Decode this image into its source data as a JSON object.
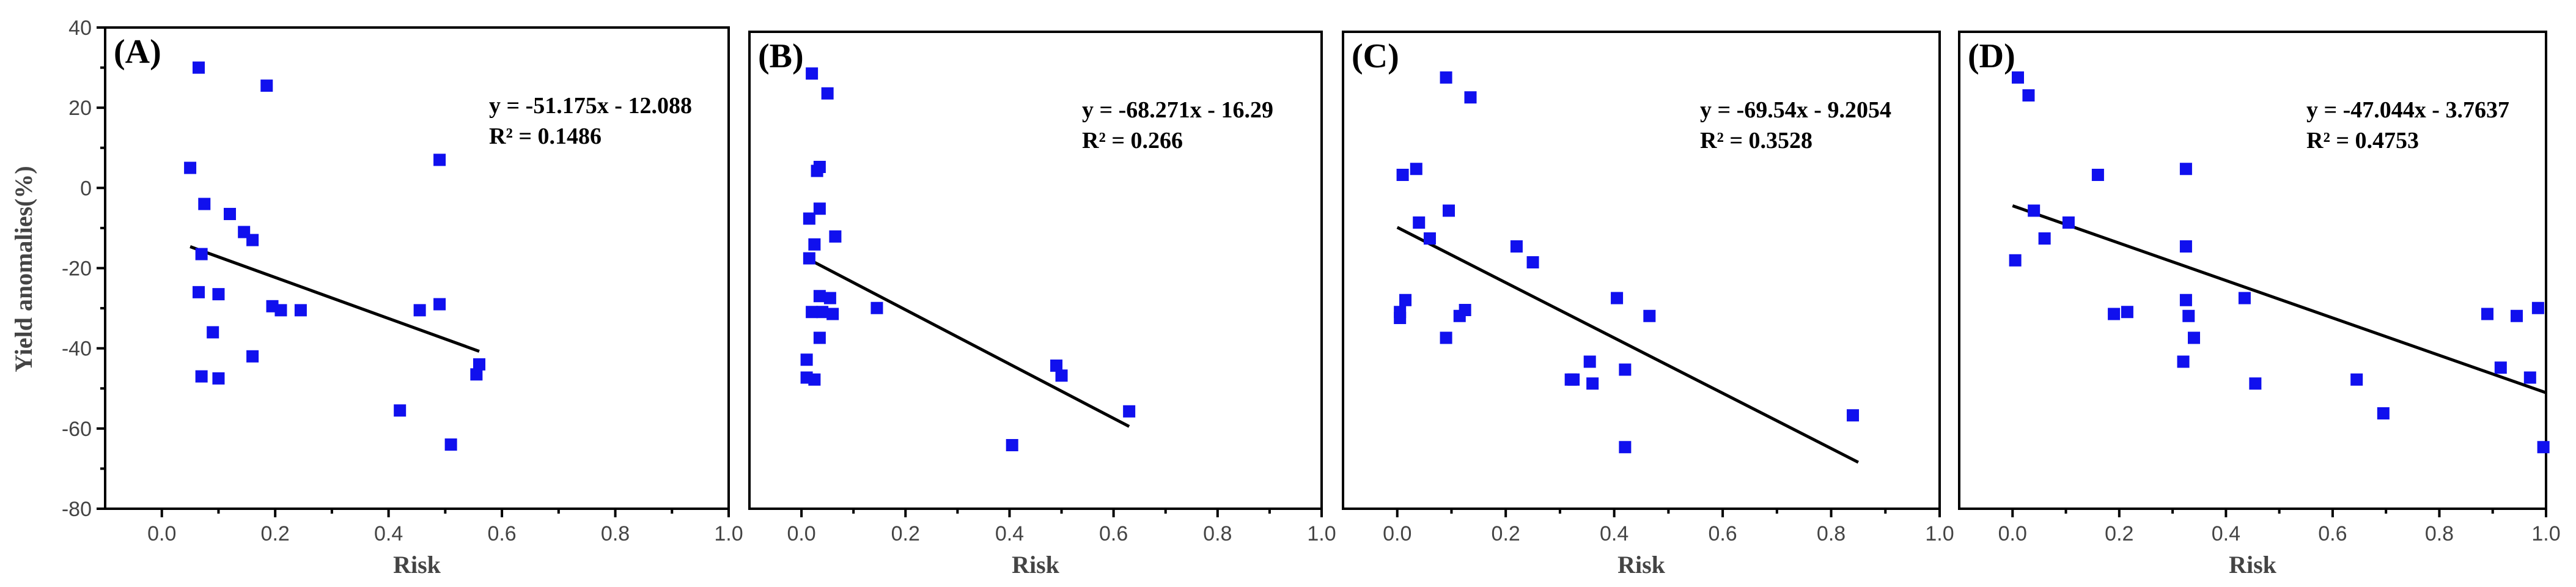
{
  "chart_data": [
    {
      "type": "scatter",
      "panel": "(A)",
      "xlabel": "Risk",
      "ylabel": "Yield anomalies(%)",
      "xlim": [
        -0.1,
        1.0
      ],
      "ylim": [
        -80,
        40
      ],
      "xticks": [
        "0.0",
        "0.2",
        "0.4",
        "0.6",
        "0.8",
        "1.0"
      ],
      "yticks": [
        "40",
        "20",
        "0",
        "-20",
        "-40",
        "-60",
        "-80"
      ],
      "show_yticks": true,
      "equation": "y = -51.175x - 12.088",
      "r2": "R² = 0.1486",
      "fit": {
        "slope": -51.175,
        "intercept": -12.088,
        "x_range": [
          0.05,
          0.56
        ]
      },
      "points": [
        {
          "x": 0.05,
          "y": 5
        },
        {
          "x": 0.065,
          "y": 30
        },
        {
          "x": 0.07,
          "y": -16.5
        },
        {
          "x": 0.065,
          "y": -26
        },
        {
          "x": 0.075,
          "y": -4
        },
        {
          "x": 0.07,
          "y": -47
        },
        {
          "x": 0.09,
          "y": -36
        },
        {
          "x": 0.1,
          "y": -26.5
        },
        {
          "x": 0.1,
          "y": -47.5
        },
        {
          "x": 0.12,
          "y": -6.5
        },
        {
          "x": 0.145,
          "y": -11
        },
        {
          "x": 0.16,
          "y": -13
        },
        {
          "x": 0.16,
          "y": -42
        },
        {
          "x": 0.185,
          "y": 25.5
        },
        {
          "x": 0.195,
          "y": -29.5
        },
        {
          "x": 0.21,
          "y": -30.5
        },
        {
          "x": 0.245,
          "y": -30.5
        },
        {
          "x": 0.42,
          "y": -55.5
        },
        {
          "x": 0.455,
          "y": -30.5
        },
        {
          "x": 0.49,
          "y": 7
        },
        {
          "x": 0.49,
          "y": -29
        },
        {
          "x": 0.51,
          "y": -64
        },
        {
          "x": 0.555,
          "y": -46.5
        },
        {
          "x": 0.56,
          "y": -44
        }
      ]
    },
    {
      "type": "scatter",
      "panel": "(B)",
      "xlabel": "Risk",
      "ylabel": "",
      "xlim": [
        -0.1,
        1.0
      ],
      "ylim": [
        -80,
        40
      ],
      "xticks": [
        "0.0",
        "0.2",
        "0.4",
        "0.6",
        "0.8",
        "1.0"
      ],
      "yticks": [],
      "show_yticks": false,
      "equation": "y = -68.271x - 16.29",
      "r2": "R² = 0.266",
      "fit": {
        "slope": -68.271,
        "intercept": -16.29,
        "x_range": [
          0.01,
          0.63
        ]
      },
      "points": [
        {
          "x": 0.02,
          "y": 29.5
        },
        {
          "x": 0.05,
          "y": 24.5
        },
        {
          "x": 0.03,
          "y": 5
        },
        {
          "x": 0.035,
          "y": 6
        },
        {
          "x": 0.035,
          "y": -4.5
        },
        {
          "x": 0.015,
          "y": -7
        },
        {
          "x": 0.065,
          "y": -11.5
        },
        {
          "x": 0.025,
          "y": -13.5
        },
        {
          "x": 0.015,
          "y": -17
        },
        {
          "x": 0.035,
          "y": -26.5
        },
        {
          "x": 0.055,
          "y": -27
        },
        {
          "x": 0.02,
          "y": -30.5
        },
        {
          "x": 0.04,
          "y": -30.5
        },
        {
          "x": 0.06,
          "y": -31
        },
        {
          "x": 0.035,
          "y": -37
        },
        {
          "x": 0.01,
          "y": -42.5
        },
        {
          "x": 0.01,
          "y": -47
        },
        {
          "x": 0.025,
          "y": -47.5
        },
        {
          "x": 0.145,
          "y": -29.5
        },
        {
          "x": 0.405,
          "y": -64
        },
        {
          "x": 0.49,
          "y": -44
        },
        {
          "x": 0.5,
          "y": -46.5
        },
        {
          "x": 0.63,
          "y": -55.5
        }
      ]
    },
    {
      "type": "scatter",
      "panel": "(C)",
      "xlabel": "Risk",
      "ylabel": "",
      "xlim": [
        -0.1,
        1.0
      ],
      "ylim": [
        -80,
        40
      ],
      "xticks": [
        "0.0",
        "0.2",
        "0.4",
        "0.6",
        "0.8",
        "1.0"
      ],
      "yticks": [],
      "show_yticks": false,
      "equation": "y = -69.54x - 9.2054",
      "r2": "R² = 0.3528",
      "fit": {
        "slope": -69.54,
        "intercept": -9.2054,
        "x_range": [
          0.0,
          0.85
        ]
      },
      "points": [
        {
          "x": 0.09,
          "y": 28.5
        },
        {
          "x": 0.135,
          "y": 23.5
        },
        {
          "x": 0.035,
          "y": 5.5
        },
        {
          "x": 0.01,
          "y": 4
        },
        {
          "x": 0.095,
          "y": -5
        },
        {
          "x": 0.04,
          "y": -8
        },
        {
          "x": 0.06,
          "y": -12
        },
        {
          "x": 0.22,
          "y": -14
        },
        {
          "x": 0.25,
          "y": -18
        },
        {
          "x": 0.015,
          "y": -27.5
        },
        {
          "x": 0.005,
          "y": -30.5
        },
        {
          "x": 0.005,
          "y": -32
        },
        {
          "x": 0.125,
          "y": -30
        },
        {
          "x": 0.115,
          "y": -31.5
        },
        {
          "x": 0.09,
          "y": -37
        },
        {
          "x": 0.405,
          "y": -27
        },
        {
          "x": 0.465,
          "y": -31.5
        },
        {
          "x": 0.355,
          "y": -43
        },
        {
          "x": 0.42,
          "y": -45
        },
        {
          "x": 0.32,
          "y": -47.5
        },
        {
          "x": 0.325,
          "y": -47.5
        },
        {
          "x": 0.36,
          "y": -48.5
        },
        {
          "x": 0.42,
          "y": -64.5
        },
        {
          "x": 0.84,
          "y": -56.5
        }
      ]
    },
    {
      "type": "scatter",
      "panel": "(D)",
      "xlabel": "Risk",
      "ylabel": "",
      "xlim": [
        -0.1,
        1.0
      ],
      "ylim": [
        -80,
        40
      ],
      "xticks": [
        "0.0",
        "0.2",
        "0.4",
        "0.6",
        "0.8",
        "1.0"
      ],
      "yticks": [],
      "show_yticks": false,
      "equation": "y = -47.044x - 3.7637",
      "r2": "R² = 0.4753",
      "fit": {
        "slope": -47.044,
        "intercept": -3.7637,
        "x_range": [
          0.0,
          1.0
        ]
      },
      "points": [
        {
          "x": 0.01,
          "y": 28.5
        },
        {
          "x": 0.03,
          "y": 24
        },
        {
          "x": 0.005,
          "y": -17.5
        },
        {
          "x": 0.04,
          "y": -5
        },
        {
          "x": 0.06,
          "y": -12
        },
        {
          "x": 0.105,
          "y": -8
        },
        {
          "x": 0.16,
          "y": 4
        },
        {
          "x": 0.19,
          "y": -31
        },
        {
          "x": 0.215,
          "y": -30.5
        },
        {
          "x": 0.325,
          "y": 5.5
        },
        {
          "x": 0.325,
          "y": -14
        },
        {
          "x": 0.325,
          "y": -27.5
        },
        {
          "x": 0.33,
          "y": -31.5
        },
        {
          "x": 0.34,
          "y": -37
        },
        {
          "x": 0.32,
          "y": -43
        },
        {
          "x": 0.435,
          "y": -27
        },
        {
          "x": 0.455,
          "y": -48.5
        },
        {
          "x": 0.645,
          "y": -47.5
        },
        {
          "x": 0.695,
          "y": -56
        },
        {
          "x": 0.89,
          "y": -31
        },
        {
          "x": 0.915,
          "y": -44.5
        },
        {
          "x": 0.945,
          "y": -31.5
        },
        {
          "x": 0.97,
          "y": -47
        },
        {
          "x": 0.985,
          "y": -29.5
        },
        {
          "x": 0.995,
          "y": -64.5
        }
      ]
    }
  ]
}
